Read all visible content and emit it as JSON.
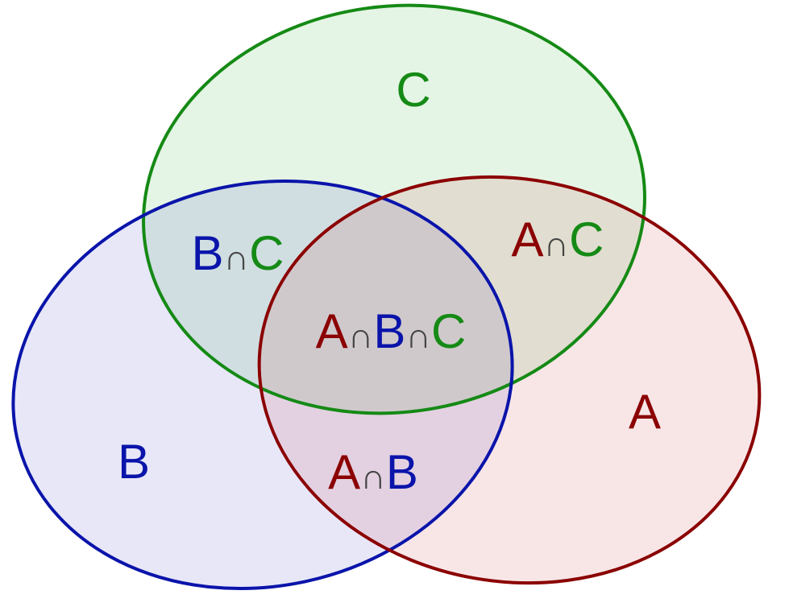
{
  "colors": {
    "A": "#8b0000",
    "B": "#0a14aa",
    "C": "#158a15",
    "symbol": "#454545",
    "fill_A": "rgba(200, 60, 70, 0.13)",
    "fill_B": "rgba(60, 60, 200, 0.12)",
    "fill_C": "rgba(40, 170, 40, 0.12)"
  },
  "sets": {
    "A": "A",
    "B": "B",
    "C": "C"
  },
  "intersection_symbol": "∩"
}
